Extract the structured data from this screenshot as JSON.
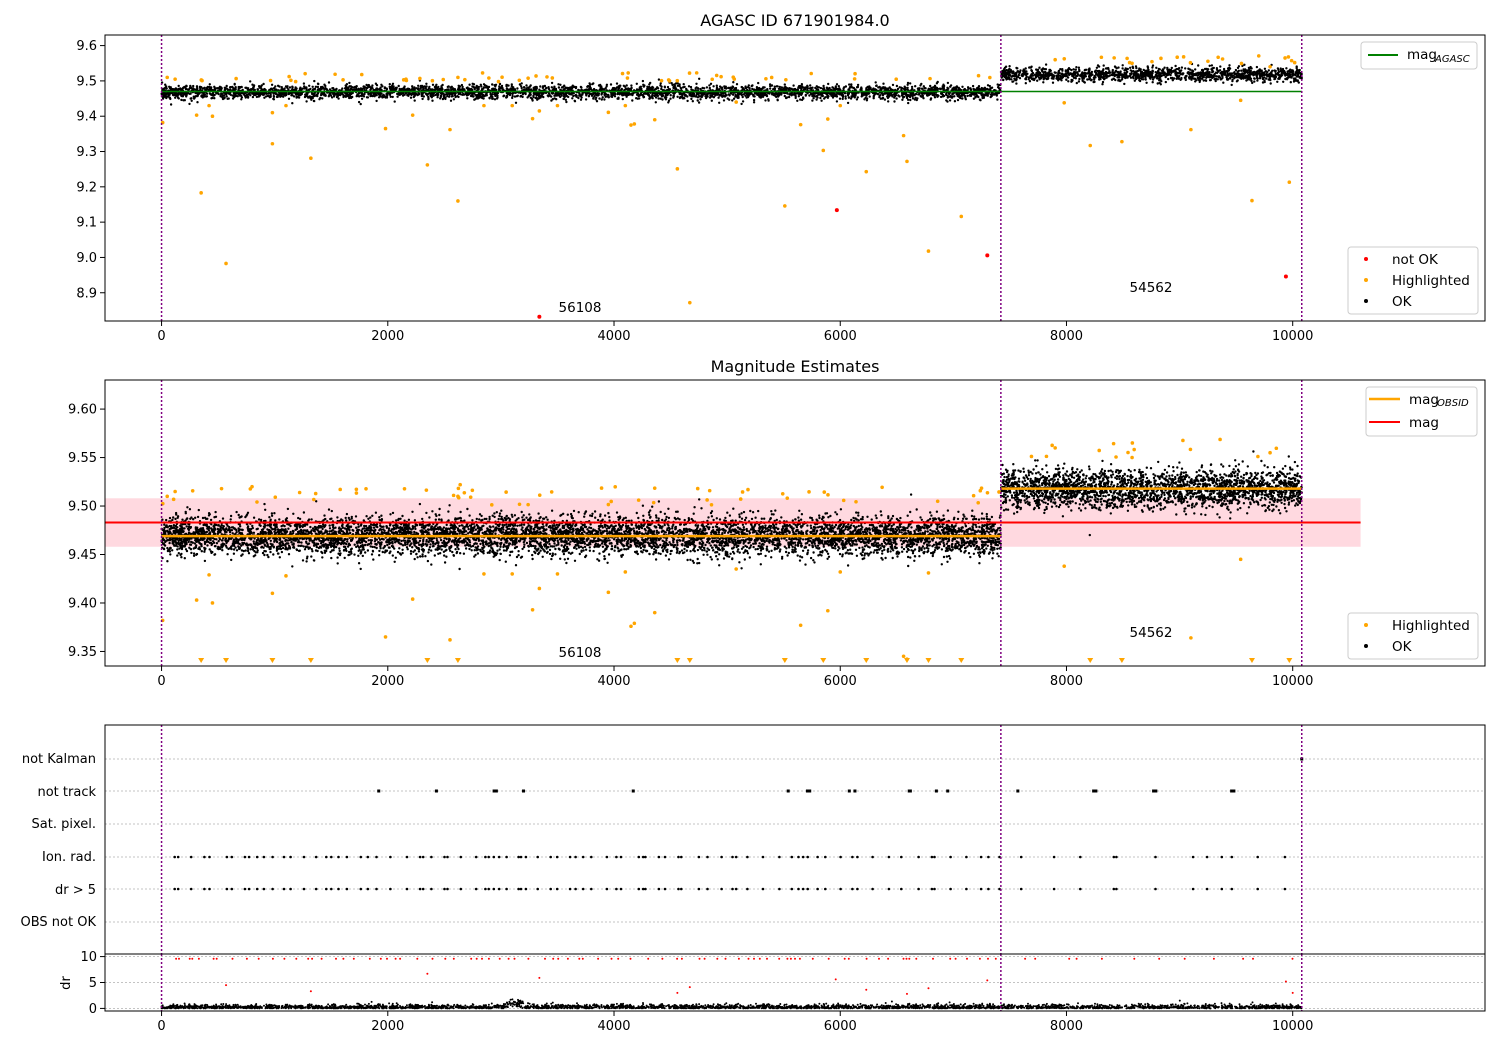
{
  "colors": {
    "ok": "#000000",
    "highlighted": "#ffa500",
    "not_ok": "#ff0000",
    "mag_agasc_line": "#008000",
    "mag_line": "#ff0000",
    "mag_band": "#ffc0cb",
    "obs_boundary": "#800080",
    "grid": "#b0b0b0"
  },
  "chart_data": [
    {
      "type": "scatter",
      "title": "AGASC ID 671901984.0",
      "xlim": [
        -500,
        11700
      ],
      "ylim": [
        8.82,
        9.63
      ],
      "xticks": [
        0,
        2000,
        4000,
        6000,
        8000,
        10000
      ],
      "xtick_labels": [
        "0",
        "2000",
        "4000",
        "6000",
        "8000",
        "10000"
      ],
      "yticks": [
        8.9,
        9.0,
        9.1,
        9.2,
        9.3,
        9.4,
        9.5,
        9.6
      ],
      "ytick_labels": [
        "8.9",
        "9.0",
        "9.1",
        "9.2",
        "9.3",
        "9.4",
        "9.5",
        "9.6"
      ],
      "obs_boundaries": [
        0,
        7420,
        10080
      ],
      "observations": [
        {
          "label": "56108",
          "x_start": 0,
          "x_end": 7420,
          "mean": 9.468,
          "spread": 0.01
        },
        {
          "label": "54562",
          "x_start": 7420,
          "x_end": 10080,
          "mean": 9.518,
          "spread": 0.01
        }
      ],
      "legend_top": [
        {
          "name_main": "mag",
          "name_sub": "AGASC",
          "color": "#008000"
        }
      ],
      "legend_bottom": [
        {
          "name": "not OK",
          "color": "#ff0000"
        },
        {
          "name": "Highlighted",
          "color": "#ffa500"
        },
        {
          "name": "OK",
          "color": "#000000"
        }
      ],
      "legend_top_position": "top-right",
      "legend_bottom_position": "lower-right",
      "series": [
        {
          "name": "not OK",
          "points": [
            [
              3340,
              8.832
            ],
            [
              5970,
              9.134
            ],
            [
              7300,
              9.006
            ],
            [
              9940,
              8.946
            ]
          ]
        },
        {
          "name": "Highlighted",
          "points": [
            [
              10,
              9.382
            ],
            [
              50,
              9.51
            ],
            [
              120,
              9.505
            ],
            [
              310,
              9.403
            ],
            [
              350,
              9.183
            ],
            [
              420,
              9.43
            ],
            [
              450,
              9.4
            ],
            [
              570,
              8.983
            ],
            [
              980,
              9.41
            ],
            [
              980,
              9.322
            ],
            [
              1100,
              9.43
            ],
            [
              1320,
              9.281
            ],
            [
              1980,
              9.365
            ],
            [
              2220,
              9.403
            ],
            [
              2350,
              9.262
            ],
            [
              2550,
              9.362
            ],
            [
              2620,
              9.16
            ],
            [
              2620,
              9.51
            ],
            [
              2850,
              9.43
            ],
            [
              3100,
              9.43
            ],
            [
              3280,
              9.393
            ],
            [
              3340,
              9.415
            ],
            [
              3500,
              9.43
            ],
            [
              3950,
              9.411
            ],
            [
              4100,
              9.43
            ],
            [
              4150,
              9.375
            ],
            [
              4180,
              9.378
            ],
            [
              4360,
              9.39
            ],
            [
              4560,
              9.251
            ],
            [
              4670,
              8.872
            ],
            [
              5080,
              9.44
            ],
            [
              5510,
              9.146
            ],
            [
              5650,
              9.376
            ],
            [
              5850,
              9.303
            ],
            [
              5890,
              9.392
            ],
            [
              6000,
              9.43
            ],
            [
              6230,
              9.243
            ],
            [
              6560,
              9.345
            ],
            [
              6590,
              9.272
            ],
            [
              6780,
              9.018
            ],
            [
              7070,
              9.116
            ],
            [
              7980,
              9.438
            ],
            [
              8210,
              9.317
            ],
            [
              8490,
              9.328
            ],
            [
              8580,
              9.55
            ],
            [
              9100,
              9.362
            ],
            [
              9540,
              9.445
            ],
            [
              9640,
              9.161
            ],
            [
              9970,
              9.213
            ],
            [
              7900,
              9.56
            ],
            [
              9800,
              9.54
            ]
          ]
        },
        {
          "name": "OK",
          "description_count": 3000
        }
      ],
      "annotations": [
        {
          "text": "56108",
          "x": 3500,
          "y": 8.835
        },
        {
          "text": "54562",
          "x": 8550,
          "y": 8.895
        }
      ]
    },
    {
      "type": "scatter",
      "title": "Magnitude Estimates",
      "xlim": [
        -500,
        11700
      ],
      "ylim": [
        9.335,
        9.63
      ],
      "xticks": [
        0,
        2000,
        4000,
        6000,
        8000,
        10000
      ],
      "xtick_labels": [
        "0",
        "2000",
        "4000",
        "6000",
        "8000",
        "10000"
      ],
      "yticks": [
        9.35,
        9.4,
        9.45,
        9.5,
        9.55,
        9.6
      ],
      "ytick_labels": [
        "9.35",
        "9.40",
        "9.45",
        "9.50",
        "9.55",
        "9.60"
      ],
      "obs_boundaries": [
        0,
        7420,
        10080
      ],
      "observations": [
        {
          "label": "56108",
          "x_start": 0,
          "x_end": 7420,
          "mean": 9.469,
          "spread": 0.01
        },
        {
          "label": "54562",
          "x_start": 7420,
          "x_end": 10080,
          "mean": 9.518,
          "spread": 0.01
        }
      ],
      "mag_obsid": [
        {
          "x_start": 0,
          "x_end": 7420,
          "y": 9.469
        },
        {
          "x_start": 7420,
          "x_end": 10080,
          "y": 9.518
        }
      ],
      "mag": {
        "x_start": -500,
        "x_end": 10600,
        "y": 9.483
      },
      "mag_band": {
        "x_start": -500,
        "x_end": 10600,
        "y_low": 9.458,
        "y_high": 9.508
      },
      "legend_top": [
        {
          "name_main": "mag",
          "name_sub": "OBSID",
          "color": "#ffa500"
        },
        {
          "name_main": "mag",
          "name_sub": "",
          "color": "#ff0000"
        }
      ],
      "legend_bottom": [
        {
          "name": "Highlighted",
          "color": "#ffa500"
        },
        {
          "name": "OK",
          "color": "#000000"
        }
      ],
      "legend_top_position": "top-right",
      "legend_bottom_position": "lower-right",
      "highlighted_points": [
        [
          10,
          9.382
        ],
        [
          50,
          9.51
        ],
        [
          120,
          9.515
        ],
        [
          310,
          9.403
        ],
        [
          420,
          9.429
        ],
        [
          450,
          9.4
        ],
        [
          800,
          9.52
        ],
        [
          980,
          9.41
        ],
        [
          1100,
          9.428
        ],
        [
          1980,
          9.365
        ],
        [
          2220,
          9.404
        ],
        [
          2550,
          9.362
        ],
        [
          2620,
          9.51
        ],
        [
          2640,
          9.522
        ],
        [
          2850,
          9.43
        ],
        [
          3100,
          9.43
        ],
        [
          3280,
          9.393
        ],
        [
          3340,
          9.415
        ],
        [
          3500,
          9.43
        ],
        [
          3950,
          9.411
        ],
        [
          4100,
          9.432
        ],
        [
          4150,
          9.376
        ],
        [
          4180,
          9.379
        ],
        [
          4360,
          9.39
        ],
        [
          4740,
          9.518
        ],
        [
          5080,
          9.435
        ],
        [
          5650,
          9.377
        ],
        [
          5890,
          9.392
        ],
        [
          6000,
          9.432
        ],
        [
          6560,
          9.345
        ],
        [
          6590,
          9.342
        ],
        [
          6780,
          9.431
        ],
        [
          7980,
          9.438
        ],
        [
          7900,
          9.56
        ],
        [
          8580,
          9.55
        ],
        [
          9100,
          9.364
        ],
        [
          9540,
          9.445
        ],
        [
          9800,
          9.555
        ]
      ],
      "triangle_markers_x": [
        350,
        570,
        980,
        1320,
        2350,
        2620,
        4560,
        4670,
        5510,
        5850,
        6230,
        6590,
        6780,
        7070,
        8210,
        8490,
        9640,
        9970
      ],
      "annotations": [
        {
          "text": "56108",
          "x": 3500,
          "y": 9.347
        },
        {
          "text": "54562",
          "x": 8550,
          "y": 9.369
        }
      ]
    },
    {
      "type": "scatter",
      "title": "",
      "xlim": [
        -500,
        11700
      ],
      "category_labels": [
        "not Kalman",
        "not track",
        "Sat. pixel.",
        "Ion. rad.",
        "dr > 5",
        "OBS not OK"
      ],
      "flags": {
        "not_track_x": [
          1920,
          2430,
          2940,
          2960,
          3200,
          4170,
          5540,
          5710,
          5730,
          6080,
          6130,
          6610,
          6620,
          6850,
          6950,
          7570,
          8240,
          8260,
          8770,
          8790,
          9460,
          9480
        ],
        "not_kalman_x": [
          10080
        ]
      },
      "obs_boundaries": [
        0,
        7420,
        10080
      ]
    },
    {
      "type": "scatter",
      "title": "",
      "xlim": [
        -500,
        11700
      ],
      "ylim": [
        -0.5,
        10.5
      ],
      "ylabel": "dr",
      "yticks": [
        0,
        5,
        10
      ],
      "ytick_labels": [
        "0",
        "5",
        "10"
      ],
      "xticks": [
        0,
        2000,
        4000,
        6000,
        8000,
        10000
      ],
      "xtick_labels": [
        "0",
        "2000",
        "4000",
        "6000",
        "8000",
        "10000"
      ],
      "red_outliers": [
        [
          570,
          4.5
        ],
        [
          1320,
          3.3
        ],
        [
          2350,
          6.7
        ],
        [
          3340,
          5.9
        ],
        [
          4560,
          3.0
        ],
        [
          4670,
          4.1
        ],
        [
          5960,
          5.6
        ],
        [
          6230,
          3.6
        ],
        [
          6590,
          2.8
        ],
        [
          6780,
          3.9
        ],
        [
          7300,
          5.4
        ],
        [
          9940,
          5.2
        ],
        [
          10000,
          3.0
        ]
      ],
      "obs_boundaries": [
        0,
        7420,
        10080
      ]
    }
  ]
}
